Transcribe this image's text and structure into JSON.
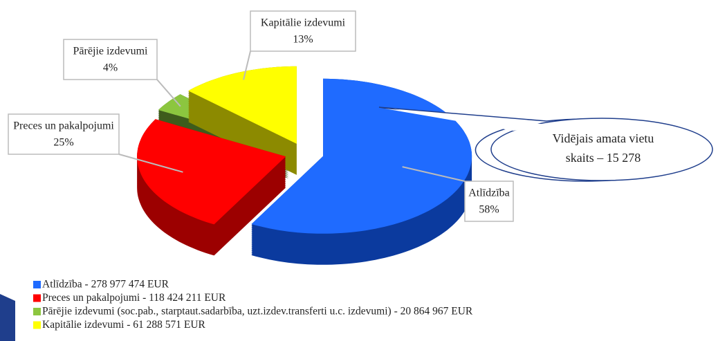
{
  "chart_data": {
    "type": "pie",
    "categories": [
      "Atlīdzība",
      "Preces un pakalpojumi",
      "Pārējie izdevumi",
      "Kapitālie izdevumi"
    ],
    "values": [
      58,
      25,
      4,
      13
    ],
    "value_labels": [
      "58%",
      "25%",
      "4%",
      "13%"
    ],
    "colors": [
      "#1f6bff",
      "#ff0000",
      "#8cc63f",
      "#ffff00"
    ],
    "legend": [
      "Atlīdzība - 278 977 474 EUR",
      "Preces un pakalpojumi - 118 424 211 EUR",
      "Pārējie izdevumi (soc.pab., starptaut.sadarbība, uzt.izdev.transferti u.c. izdevumi) - 20 864 967 EUR",
      "Kapitālie izdevumi - 61 288 571 EUR"
    ],
    "annotation": [
      "Vidējais amata vietu",
      "skaits – 15 278"
    ]
  }
}
